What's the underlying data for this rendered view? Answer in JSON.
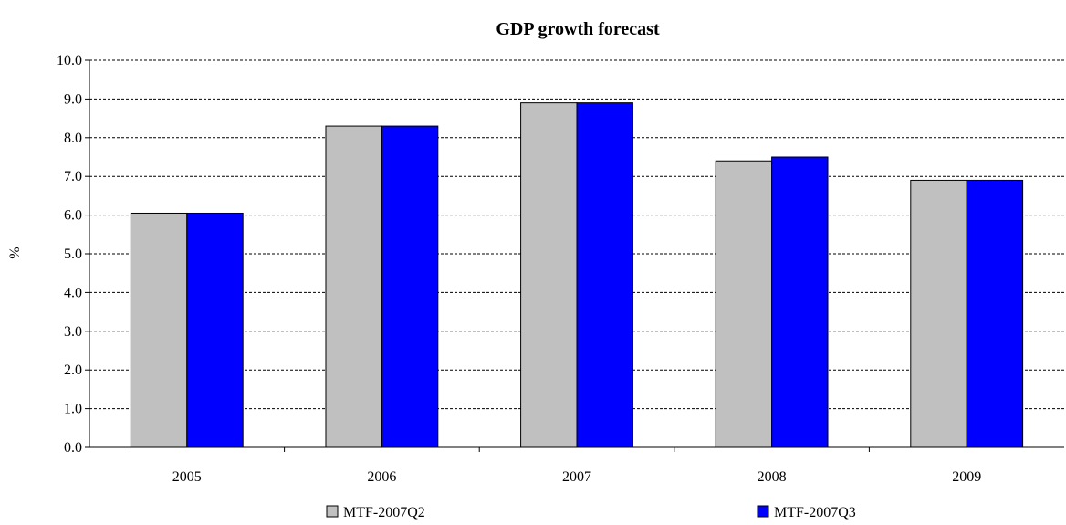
{
  "chart_data": {
    "type": "bar",
    "title": "GDP growth forecast",
    "xlabel": "",
    "ylabel": "%",
    "ylim": [
      0,
      10
    ],
    "ytick_step": 1,
    "ytick_format_decimals": 1,
    "grid": true,
    "legend_position": "bottom",
    "categories": [
      "2005",
      "2006",
      "2007",
      "2008",
      "2009"
    ],
    "series": [
      {
        "name": "MTF-2007Q2",
        "color": "#c0c0c0",
        "values": [
          6.05,
          8.3,
          8.9,
          7.4,
          6.9
        ]
      },
      {
        "name": "MTF-2007Q3",
        "color": "#0000ff",
        "values": [
          6.05,
          8.3,
          8.9,
          7.5,
          6.9
        ]
      }
    ]
  }
}
